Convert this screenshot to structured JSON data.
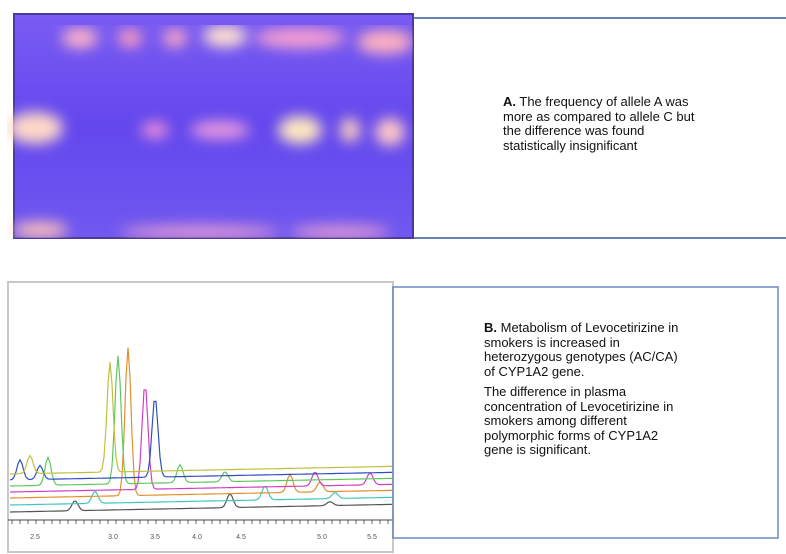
{
  "panel_a": {
    "label": "A.",
    "lines": [
      "The frequency of allele A was",
      "more as compared to allele C but",
      "the difference was found",
      "statistically insignificant"
    ]
  },
  "panel_b": {
    "label": "B.",
    "paragraphs": [
      [
        "Metabolism of Levocetirizine in",
        "smokers is increased in",
        "heterozygous genotypes (AC/CA)",
        "of CYP1A2 gene."
      ],
      [
        "The difference in plasma",
        "concentration of Levocetirizine in",
        "smokers among different",
        "polymorphic forms of CYP1A2",
        "gene is significant."
      ]
    ]
  },
  "chromatogram_axis": [
    "2.5",
    "3.0",
    "3.5",
    "4.0",
    "4.5",
    "5.0",
    "5.5"
  ]
}
